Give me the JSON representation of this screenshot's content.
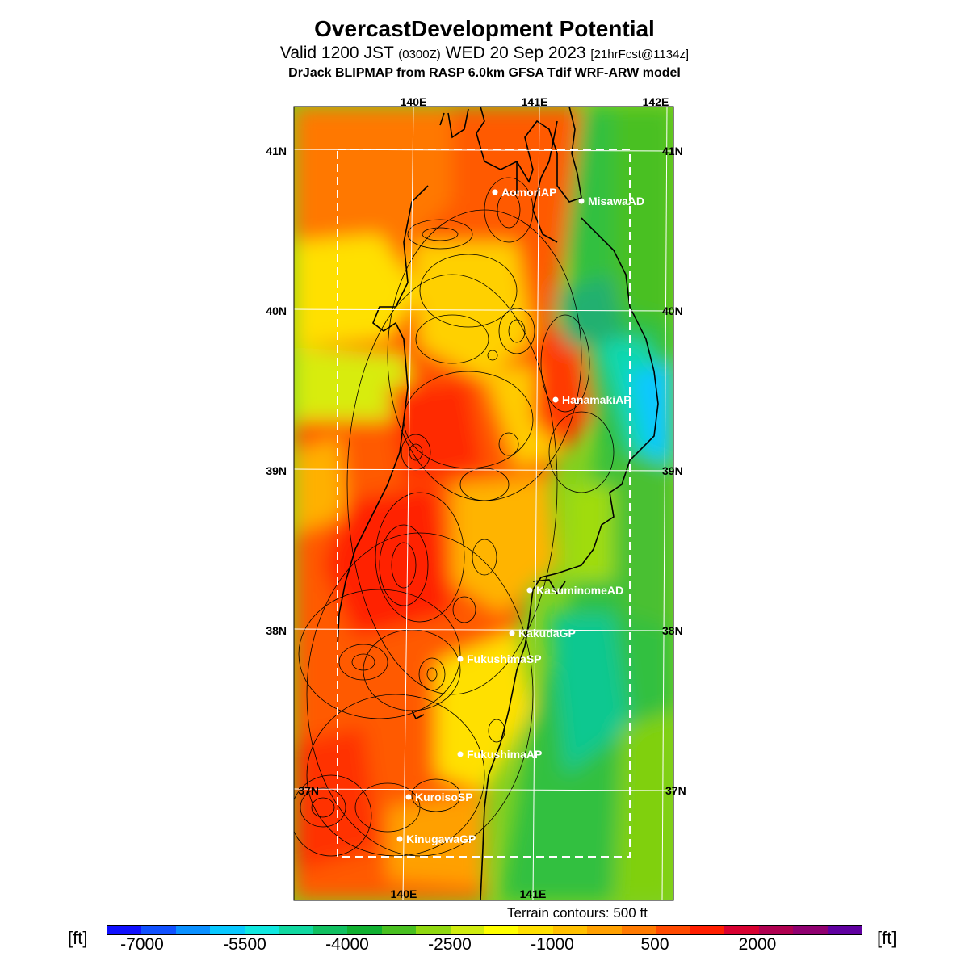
{
  "header": {
    "title": "OvercastDevelopment Potential",
    "valid_prefix": "Valid 1200 JST",
    "valid_zulu": "(0300Z)",
    "valid_date": "WED 20 Sep 2023",
    "forecast_tag": "[21hrFcst@1134z]",
    "model_line": "DrJack BLIPMAP from RASP 6.0km GFSA Tdif WRF-ARW model"
  },
  "map": {
    "lon_labels_top": [
      "140E",
      "141E",
      "142E"
    ],
    "lon_labels_bottom": [
      "140E",
      "141E"
    ],
    "lat_labels_left": [
      "41N",
      "40N",
      "39N",
      "38N",
      "37N"
    ],
    "lat_labels_right": [
      "41N",
      "40N",
      "39N",
      "38N",
      "37N"
    ],
    "stations": [
      {
        "name": "AomoriAP"
      },
      {
        "name": "MisawaAD"
      },
      {
        "name": "HanamakiAP"
      },
      {
        "name": "KasuminomeAD"
      },
      {
        "name": "KakudaGP"
      },
      {
        "name": "FukushimaSP"
      },
      {
        "name": "FukushimaAP"
      },
      {
        "name": "KuroisoSP"
      },
      {
        "name": "KinugawaGP"
      }
    ]
  },
  "terrain_note": "Terrain contours: 500 ft",
  "legend": {
    "unit": "[ft]",
    "tick_labels": [
      "-7000",
      "-5500",
      "-4000",
      "-2500",
      "-1000",
      "500",
      "2000"
    ],
    "colors": [
      "#1010ff",
      "#1050ff",
      "#0a90ff",
      "#08c8ff",
      "#10e8e0",
      "#10d8a0",
      "#10c060",
      "#10b030",
      "#48c020",
      "#90d810",
      "#d0ec10",
      "#ffff00",
      "#ffe000",
      "#ffc000",
      "#ffa000",
      "#ff7a00",
      "#ff4a00",
      "#ff1e00",
      "#d80030",
      "#b00050",
      "#900070",
      "#6000a0"
    ]
  }
}
